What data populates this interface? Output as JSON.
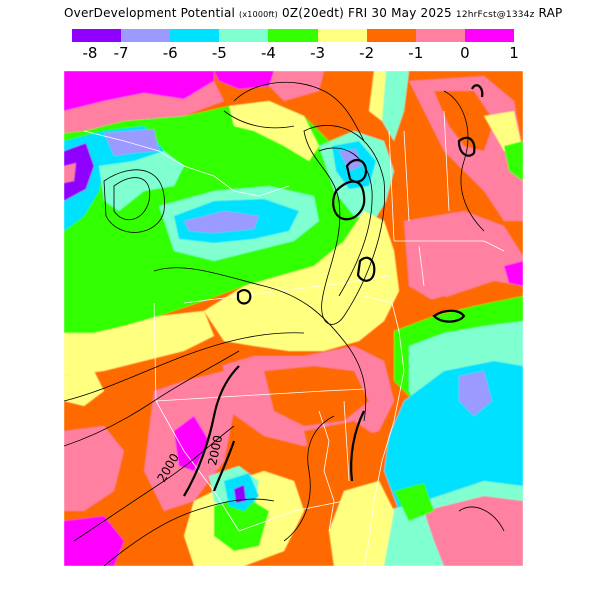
{
  "title": {
    "field": "OverDevelopment Potential",
    "units": "(x1000ft)",
    "valid": "0Z(20edt) FRI 30 May 2025",
    "forecast": "12hrFcst@1334z",
    "model": "RAP"
  },
  "colorbar": {
    "colors": [
      "#9000ff",
      "#9a9aff",
      "#00e0ff",
      "#80ffd0",
      "#33ff00",
      "#ffff80",
      "#ff6a00",
      "#ff80a0",
      "#ff00ff"
    ],
    "labels": [
      "-8",
      "-7",
      "-6",
      "-5",
      "-4",
      "-3",
      "-2",
      "-1",
      "0",
      "1"
    ]
  },
  "map": {
    "contour_labels": [
      "2000",
      "2000"
    ]
  }
}
